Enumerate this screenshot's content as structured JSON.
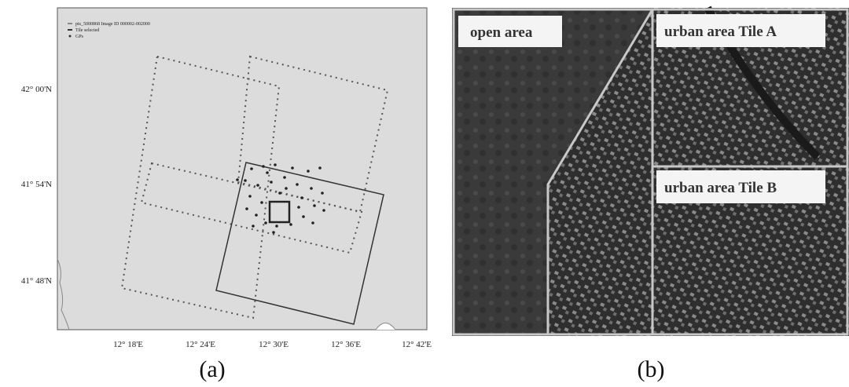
{
  "panel_a": {
    "legend": [
      "pts_5000868 Image ID 000002-002000",
      "Tile selected",
      "GPs"
    ],
    "y_labels": [
      "42° 00'N",
      "41° 54'N",
      "41° 48'N"
    ],
    "x_labels": [
      "12° 18'E",
      "12° 24'E",
      "12° 30'E",
      "12° 36'E",
      "12° 42'E"
    ],
    "caption": "(a)"
  },
  "panel_b": {
    "labels": [
      "open area",
      "urban area Tile A",
      "urban area Tile B"
    ],
    "caption": "(b)"
  }
}
